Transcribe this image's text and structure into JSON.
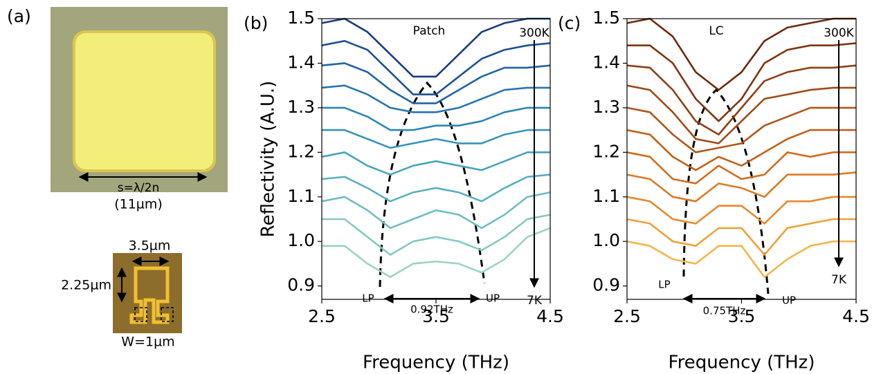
{
  "panel_labels": [
    "(a)",
    "(b)",
    "(c)"
  ],
  "micrographs": {
    "patch_width": "s=λ/2n",
    "patch_size": "(11µm)",
    "lc_width": "3.5µm",
    "lc_height": "2.25µm",
    "lc_gap": "W=1µm"
  },
  "chart_data": [
    {
      "type": "line",
      "title": "Patch",
      "x_label": "Frequency (THz)",
      "y_label": "Reflectivity (A.U.)",
      "x": [
        2.5,
        2.7,
        2.9,
        3.1,
        3.3,
        3.5,
        3.7,
        3.9,
        4.1,
        4.3,
        4.5
      ],
      "xlim": [
        2.5,
        4.5
      ],
      "xticks": [
        2.5,
        3.5,
        4.5
      ],
      "ylim": [
        0.87,
        1.5
      ],
      "yticks": [
        0.9,
        {
          "value": 1,
          "label": "1.0"
        },
        1.1,
        1.2,
        1.3,
        1.4,
        1.5
      ],
      "annotations": {
        "start_temp": "300K",
        "end_temp": "7K",
        "lower_mode": "LP",
        "upper_mode": "UP",
        "splitting": "0.92THz"
      },
      "series": [
        {
          "color": "#163c80",
          "values": [
            1.49,
            1.5,
            1.47,
            1.42,
            1.37,
            1.37,
            1.42,
            1.47,
            1.49,
            1.5,
            1.5
          ]
        },
        {
          "color": "#1b5096",
          "values": [
            1.44,
            1.45,
            1.43,
            1.38,
            1.33,
            1.33,
            1.37,
            1.41,
            1.43,
            1.44,
            1.445
          ]
        },
        {
          "color": "#2063a6",
          "values": [
            1.395,
            1.4,
            1.38,
            1.34,
            1.31,
            1.31,
            1.34,
            1.37,
            1.39,
            1.39,
            1.395
          ]
        },
        {
          "color": "#2575b0",
          "values": [
            1.345,
            1.35,
            1.33,
            1.3,
            1.29,
            1.29,
            1.3,
            1.32,
            1.34,
            1.345,
            1.345
          ]
        },
        {
          "color": "#2a86b7",
          "values": [
            1.3,
            1.3,
            1.28,
            1.25,
            1.25,
            1.26,
            1.26,
            1.27,
            1.29,
            1.3,
            1.3
          ]
        },
        {
          "color": "#3594bd",
          "values": [
            1.25,
            1.25,
            1.23,
            1.21,
            1.22,
            1.23,
            1.22,
            1.22,
            1.24,
            1.25,
            1.25
          ]
        },
        {
          "color": "#45a3c0",
          "values": [
            1.19,
            1.2,
            1.17,
            1.15,
            1.17,
            1.18,
            1.17,
            1.16,
            1.18,
            1.2,
            1.2
          ]
        },
        {
          "color": "#57b0c2",
          "values": [
            1.14,
            1.145,
            1.12,
            1.09,
            1.11,
            1.12,
            1.11,
            1.09,
            1.12,
            1.145,
            1.15
          ]
        },
        {
          "color": "#6ebdc3",
          "values": [
            1.09,
            1.1,
            1.07,
            1.03,
            1.05,
            1.07,
            1.06,
            1.03,
            1.06,
            1.1,
            1.11
          ]
        },
        {
          "color": "#84c9c1",
          "values": [
            1.05,
            1.05,
            1.01,
            0.97,
            1.0,
            1.01,
            1.0,
            0.98,
            1.01,
            1.05,
            1.06
          ]
        },
        {
          "color": "#99d5bf",
          "values": [
            0.99,
            0.99,
            0.95,
            0.92,
            0.95,
            0.955,
            0.95,
            0.93,
            0.96,
            1.01,
            1.03
          ]
        }
      ]
    },
    {
      "type": "line",
      "title": "LC",
      "x_label": "Frequency (THz)",
      "x": [
        2.5,
        2.7,
        2.9,
        3.1,
        3.3,
        3.5,
        3.7,
        3.9,
        4.1,
        4.3,
        4.5
      ],
      "xlim": [
        2.5,
        4.5
      ],
      "xticks": [
        2.5,
        3.5,
        4.5
      ],
      "ylim": [
        0.87,
        1.5
      ],
      "yticks": [
        0.9,
        {
          "value": 1,
          "label": "1.0"
        },
        1.1,
        1.2,
        1.3,
        1.4,
        1.5
      ],
      "annotations": {
        "start_temp": "300K",
        "end_temp": "7K",
        "lower_mode": "LP",
        "upper_mode": "UP",
        "splitting": "0.75THz"
      },
      "series": [
        {
          "color": "#6b2a0c",
          "values": [
            1.49,
            1.5,
            1.46,
            1.38,
            1.34,
            1.38,
            1.45,
            1.48,
            1.49,
            1.5,
            1.5
          ]
        },
        {
          "color": "#7e3410",
          "values": [
            1.44,
            1.44,
            1.4,
            1.32,
            1.27,
            1.32,
            1.4,
            1.43,
            1.44,
            1.44,
            1.445
          ]
        },
        {
          "color": "#8f3e12",
          "values": [
            1.395,
            1.39,
            1.34,
            1.27,
            1.24,
            1.3,
            1.36,
            1.38,
            1.39,
            1.39,
            1.395
          ]
        },
        {
          "color": "#a04914",
          "values": [
            1.35,
            1.34,
            1.29,
            1.23,
            1.22,
            1.27,
            1.32,
            1.33,
            1.34,
            1.345,
            1.345
          ]
        },
        {
          "color": "#b35415",
          "values": [
            1.3,
            1.29,
            1.24,
            1.2,
            1.21,
            1.22,
            1.26,
            1.28,
            1.3,
            1.3,
            1.3
          ]
        },
        {
          "color": "#c25f17",
          "values": [
            1.25,
            1.24,
            1.19,
            1.16,
            1.19,
            1.17,
            1.2,
            1.23,
            1.25,
            1.25,
            1.25
          ]
        },
        {
          "color": "#d06c1c",
          "values": [
            1.2,
            1.19,
            1.14,
            1.13,
            1.17,
            1.14,
            1.15,
            1.2,
            1.19,
            1.2,
            1.2
          ]
        },
        {
          "color": "#dc7a22",
          "values": [
            1.15,
            1.14,
            1.1,
            1.09,
            1.13,
            1.12,
            1.1,
            1.15,
            1.15,
            1.15,
            1.155
          ]
        },
        {
          "color": "#e68a2c",
          "values": [
            1.1,
            1.09,
            1.05,
            1.04,
            1.08,
            1.08,
            1.04,
            1.09,
            1.09,
            1.1,
            1.1
          ]
        },
        {
          "color": "#eea03a",
          "values": [
            1.05,
            1.04,
            1.0,
            0.99,
            1.03,
            1.03,
            0.97,
            1.03,
            1.04,
            1.05,
            1.05
          ]
        },
        {
          "color": "#f5b54c",
          "values": [
            1.0,
            0.99,
            0.96,
            0.95,
            0.99,
            0.99,
            0.92,
            0.96,
            0.99,
            1.0,
            1.0
          ]
        }
      ]
    }
  ]
}
